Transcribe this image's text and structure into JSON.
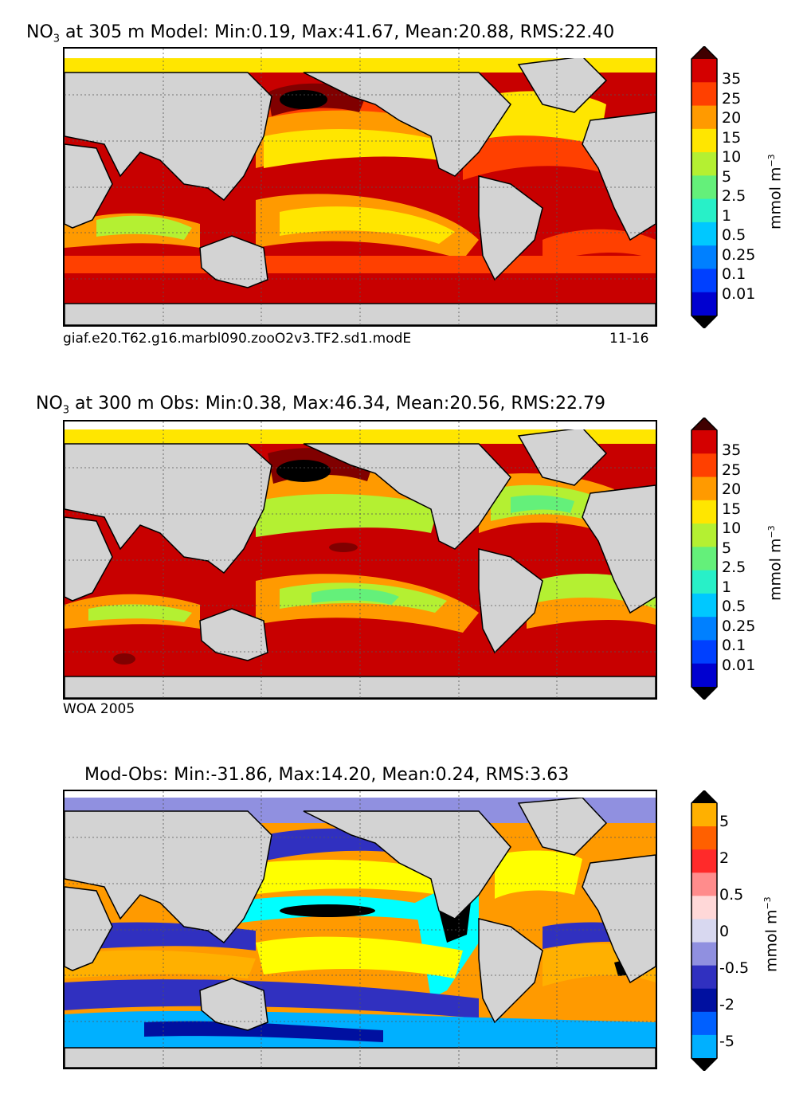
{
  "panels": [
    {
      "title_prefix": "NO",
      "title_sub": "3",
      "title_rest": " at 305 m Model: Min:0.19, Max:41.67, Mean:20.88, RMS:22.40",
      "note_left": "giaf.e20.T62.g16.marbl090.zooO2v3.TF2.sd1.modE",
      "note_right": "11-16",
      "colorbar_labels": [
        "35",
        "25",
        "20",
        "15",
        "10",
        "5",
        "2.5",
        "1",
        "0.5",
        "0.25",
        "0.1",
        "0.01"
      ],
      "colorbar_colors": [
        "#800000",
        "#d40000",
        "#ff4000",
        "#ff9a00",
        "#ffe600",
        "#b4f032",
        "#64f07a",
        "#28f0c8",
        "#00c8ff",
        "#0080ff",
        "#0040ff",
        "#0000d0",
        "#000080"
      ],
      "units_base": "mmol m",
      "units_exp": "−3"
    },
    {
      "title_prefix": "NO",
      "title_sub": "3",
      "title_rest": " at 300 m Obs: Min:0.38, Max:46.34, Mean:20.56, RMS:22.79",
      "note_left": "WOA 2005",
      "note_right": "",
      "colorbar_labels": [
        "35",
        "25",
        "20",
        "15",
        "10",
        "5",
        "2.5",
        "1",
        "0.5",
        "0.25",
        "0.1",
        "0.01"
      ],
      "colorbar_colors": [
        "#800000",
        "#d40000",
        "#ff4000",
        "#ff9a00",
        "#ffe600",
        "#b4f032",
        "#64f07a",
        "#28f0c8",
        "#00c8ff",
        "#0080ff",
        "#0040ff",
        "#0000d0",
        "#000080"
      ],
      "units_base": "mmol m",
      "units_exp": "−3"
    },
    {
      "title_prefix": "Mod-Obs: Min:-31.86, Max:14.20, Mean:0.24, RMS:3.63",
      "title_sub": "",
      "title_rest": "",
      "note_left": "",
      "note_right": "",
      "colorbar_labels": [
        "5",
        "2",
        "0.5",
        "0",
        "-0.5",
        "-2",
        "-5"
      ],
      "colorbar_colors": [
        "#ffff00",
        "#ffb000",
        "#ff6000",
        "#ff2a2a",
        "#ff8c8c",
        "#ffd8d8",
        "#d8d8f0",
        "#9090e0",
        "#3030c0",
        "#0010a0",
        "#0060ff",
        "#00b0ff",
        "#00ffff"
      ],
      "units_base": "mmol m",
      "units_exp": "−3"
    }
  ],
  "colors": {
    "land": "#d3d3d3",
    "grid": "#555555"
  }
}
